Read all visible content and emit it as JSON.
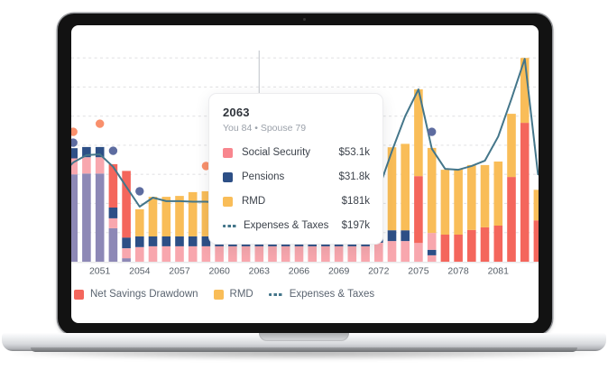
{
  "device": {
    "kind": "laptop-mockup"
  },
  "colors": {
    "social_security": "#f8868e",
    "social_security_bar": "#f8a7ae",
    "pensions": "#2d4f86",
    "rmd": "#f9bd58",
    "net_savings_drawdown": "#f4665c",
    "purple_series": "#8d88b6",
    "expenses_line": "#44768a",
    "dot_orange": "#f9906c",
    "dot_blue": "#5d6ca0",
    "gridline": "#e3e3e5",
    "axis_line": "#e2e2e4",
    "tick_label": "#555d66",
    "hover_line": "#c9ccd1"
  },
  "tooltip": {
    "title": "2063",
    "subtitle": "You 84 • Spouse 79",
    "rows": [
      {
        "label": "Social Security",
        "value": "$53.1k",
        "chip": "social_security"
      },
      {
        "label": "Pensions",
        "value": "$31.8k",
        "chip": "pensions"
      },
      {
        "label": "RMD",
        "value": "$181k",
        "chip": "rmd"
      },
      {
        "label": "Expenses & Taxes",
        "value": "$197k",
        "chip": "expenses_line"
      }
    ]
  },
  "legend": {
    "items": [
      {
        "label": "Net Savings Drawdown",
        "swatch": "net_savings_drawdown",
        "type": "square"
      },
      {
        "label": "RMD",
        "swatch": "rmd",
        "type": "square"
      },
      {
        "label": "Expenses & Taxes",
        "swatch": "expenses_line",
        "type": "dashes"
      }
    ]
  },
  "chart_data": {
    "type": "bar",
    "subtype": "stacked-bars-with-line-and-scatter",
    "title": "",
    "xlabel": "",
    "ylabel": "",
    "unit": "$k per year",
    "hover_year": 2063,
    "x_axis": {
      "tick_years": [
        2051,
        2054,
        2057,
        2060,
        2063,
        2066,
        2069,
        2072,
        2075,
        2078,
        2081
      ],
      "range": [
        2048,
        2084
      ]
    },
    "y_axis": {
      "gridline_interval_k": 100,
      "max_k": 700,
      "labels_visible": false,
      "grid": "dashed"
    },
    "legend_position": "bottom-left",
    "series_keys": [
      "purple_series",
      "social_security",
      "pensions",
      "rmd",
      "net_savings_drawdown"
    ],
    "line_series": {
      "name": "Expenses & Taxes",
      "color_key": "expenses_line",
      "years": [
        2048,
        2049,
        2050,
        2051,
        2052,
        2053,
        2054,
        2055,
        2056,
        2057,
        2058,
        2059,
        2060,
        2061,
        2062,
        2063,
        2064,
        2065,
        2066,
        2067,
        2068,
        2069,
        2070,
        2071,
        2072,
        2073,
        2074,
        2075,
        2076,
        2077,
        2078,
        2079,
        2080,
        2081,
        2082,
        2083,
        2084
      ],
      "values_k": [
        294,
        341,
        366,
        369,
        326,
        257,
        189,
        220,
        208,
        208,
        206,
        206,
        203,
        200,
        198,
        197,
        198,
        200,
        201,
        203,
        205,
        207,
        210,
        220,
        250,
        380,
        500,
        592,
        388,
        319,
        316,
        329,
        347,
        430,
        560,
        697,
        300
      ]
    },
    "bars": [
      {
        "year": 2048,
        "segments": [
          [
            "purple_series",
            300
          ],
          [
            "social_security",
            53
          ],
          [
            "pensions",
            32
          ]
        ]
      },
      {
        "year": 2049,
        "segments": [
          [
            "purple_series",
            300
          ],
          [
            "social_security",
            55
          ],
          [
            "pensions",
            35
          ]
        ]
      },
      {
        "year": 2050,
        "segments": [
          [
            "purple_series",
            303
          ],
          [
            "social_security",
            56
          ],
          [
            "pensions",
            35
          ]
        ]
      },
      {
        "year": 2051,
        "segments": [
          [
            "purple_series",
            303
          ],
          [
            "social_security",
            56
          ],
          [
            "pensions",
            35
          ]
        ]
      },
      {
        "year": 2052,
        "segments": [
          [
            "purple_series",
            115
          ],
          [
            "social_security",
            34
          ],
          [
            "pensions",
            37
          ],
          [
            "net_savings_drawdown",
            149
          ]
        ]
      },
      {
        "year": 2053,
        "segments": [
          [
            "purple_series",
            12
          ],
          [
            "social_security",
            34
          ],
          [
            "pensions",
            37
          ],
          [
            "net_savings_drawdown",
            229
          ]
        ]
      },
      {
        "year": 2054,
        "segments": [
          [
            "social_security",
            50
          ],
          [
            "pensions",
            37
          ],
          [
            "rmd",
            93
          ]
        ]
      },
      {
        "year": 2055,
        "segments": [
          [
            "social_security",
            53
          ],
          [
            "pensions",
            34
          ],
          [
            "rmd",
            136
          ]
        ]
      },
      {
        "year": 2056,
        "segments": [
          [
            "social_security",
            53
          ],
          [
            "pensions",
            34
          ],
          [
            "rmd",
            136
          ]
        ]
      },
      {
        "year": 2057,
        "segments": [
          [
            "social_security",
            53
          ],
          [
            "pensions",
            34
          ],
          [
            "rmd",
            139
          ]
        ]
      },
      {
        "year": 2058,
        "segments": [
          [
            "social_security",
            53
          ],
          [
            "pensions",
            34
          ],
          [
            "rmd",
            152
          ]
        ]
      },
      {
        "year": 2059,
        "segments": [
          [
            "social_security",
            53
          ],
          [
            "pensions",
            34
          ],
          [
            "rmd",
            155
          ]
        ]
      },
      {
        "year": 2060,
        "segments": [
          [
            "social_security",
            53
          ],
          [
            "pensions",
            34
          ],
          [
            "rmd",
            158
          ]
        ]
      },
      {
        "year": 2061,
        "segments": [
          [
            "social_security",
            53
          ],
          [
            "pensions",
            33
          ],
          [
            "rmd",
            163
          ]
        ]
      },
      {
        "year": 2062,
        "segments": [
          [
            "social_security",
            53
          ],
          [
            "pensions",
            32
          ],
          [
            "rmd",
            172
          ]
        ]
      },
      {
        "year": 2063,
        "segments": [
          [
            "social_security",
            53.1
          ],
          [
            "pensions",
            31.8
          ],
          [
            "rmd",
            181
          ]
        ]
      },
      {
        "year": 2064,
        "segments": [
          [
            "social_security",
            53
          ],
          [
            "pensions",
            31
          ],
          [
            "rmd",
            190
          ]
        ]
      },
      {
        "year": 2065,
        "segments": [
          [
            "social_security",
            53
          ],
          [
            "pensions",
            31
          ],
          [
            "rmd",
            199
          ]
        ]
      },
      {
        "year": 2066,
        "segments": [
          [
            "social_security",
            53
          ],
          [
            "pensions",
            30
          ],
          [
            "rmd",
            208
          ]
        ]
      },
      {
        "year": 2067,
        "segments": [
          [
            "social_security",
            53
          ],
          [
            "pensions",
            30
          ],
          [
            "rmd",
            217
          ]
        ]
      },
      {
        "year": 2068,
        "segments": [
          [
            "social_security",
            53
          ],
          [
            "pensions",
            29
          ],
          [
            "rmd",
            226
          ]
        ]
      },
      {
        "year": 2069,
        "segments": [
          [
            "social_security",
            53
          ],
          [
            "pensions",
            29
          ],
          [
            "rmd",
            235
          ]
        ]
      },
      {
        "year": 2070,
        "segments": [
          [
            "social_security",
            53
          ],
          [
            "pensions",
            28
          ],
          [
            "rmd",
            244
          ]
        ]
      },
      {
        "year": 2071,
        "segments": [
          [
            "social_security",
            53
          ],
          [
            "pensions",
            28
          ],
          [
            "rmd",
            253
          ]
        ]
      },
      {
        "year": 2072,
        "segments": [
          [
            "social_security",
            65
          ],
          [
            "pensions",
            35
          ],
          [
            "rmd",
            270
          ]
        ]
      },
      {
        "year": 2073,
        "segments": [
          [
            "social_security",
            71
          ],
          [
            "pensions",
            37
          ],
          [
            "rmd",
            285
          ]
        ]
      },
      {
        "year": 2074,
        "segments": [
          [
            "social_security",
            71
          ],
          [
            "pensions",
            37
          ],
          [
            "rmd",
            297
          ]
        ]
      },
      {
        "year": 2075,
        "segments": [
          [
            "social_security",
            65
          ],
          [
            "net_savings_drawdown",
            229
          ],
          [
            "rmd",
            298
          ]
        ]
      },
      {
        "year": 2076,
        "segments": [
          [
            "social_security",
            22
          ],
          [
            "pensions",
            19
          ],
          [
            "social_security",
            58
          ],
          [
            "rmd",
            292
          ]
        ]
      },
      {
        "year": 2077,
        "segments": [
          [
            "net_savings_drawdown",
            93
          ],
          [
            "rmd",
            223
          ]
        ]
      },
      {
        "year": 2078,
        "segments": [
          [
            "net_savings_drawdown",
            93
          ],
          [
            "rmd",
            226
          ]
        ]
      },
      {
        "year": 2079,
        "segments": [
          [
            "net_savings_drawdown",
            109
          ],
          [
            "rmd",
            223
          ]
        ]
      },
      {
        "year": 2080,
        "segments": [
          [
            "net_savings_drawdown",
            118
          ],
          [
            "rmd",
            214
          ]
        ]
      },
      {
        "year": 2081,
        "segments": [
          [
            "net_savings_drawdown",
            124
          ],
          [
            "rmd",
            220
          ]
        ]
      },
      {
        "year": 2082,
        "segments": [
          [
            "net_savings_drawdown",
            291
          ],
          [
            "rmd",
            217
          ]
        ]
      },
      {
        "year": 2083,
        "segments": [
          [
            "net_savings_drawdown",
            477
          ],
          [
            "rmd",
            223
          ]
        ]
      },
      {
        "year": 2084,
        "segments": [
          [
            "net_savings_drawdown",
            142
          ],
          [
            "rmd",
            105
          ]
        ]
      }
    ],
    "scatter_dots": [
      {
        "year": 2049,
        "value_k": 446,
        "color_key": "dot_orange"
      },
      {
        "year": 2051,
        "value_k": 474,
        "color_key": "dot_orange"
      },
      {
        "year": 2049,
        "value_k": 409,
        "color_key": "dot_blue"
      },
      {
        "year": 2052,
        "value_k": 381,
        "color_key": "dot_blue"
      },
      {
        "year": 2054,
        "value_k": 242,
        "color_key": "dot_blue"
      },
      {
        "year": 2059,
        "value_k": 329,
        "color_key": "dot_orange"
      },
      {
        "year": 2076,
        "value_k": 446,
        "color_key": "dot_blue"
      }
    ]
  }
}
